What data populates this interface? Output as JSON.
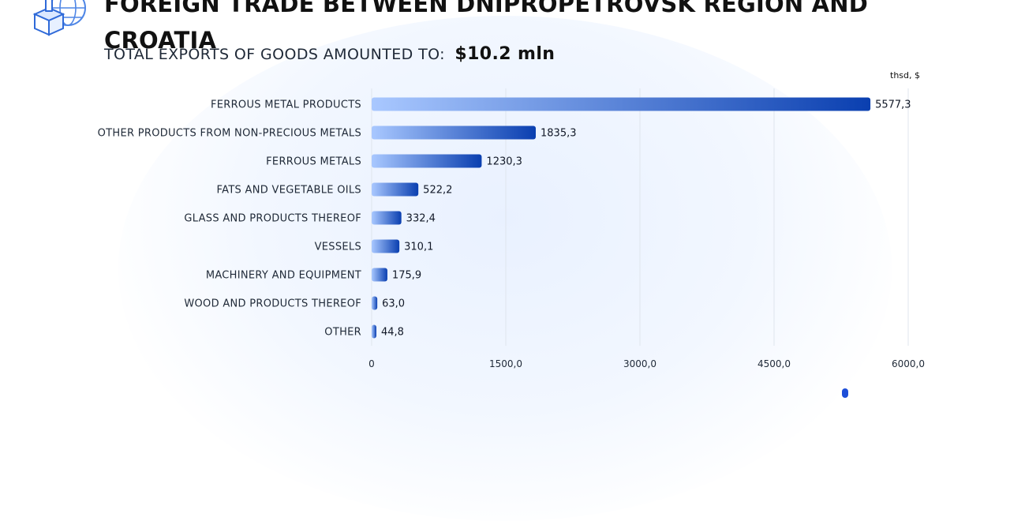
{
  "header": {
    "title": "FOREIGN TRADE BETWEEN DNIPROPETROVSK REGION AND CROATIA",
    "subtitle_prefix": "TOTAL EXPORTS OF GOODS AMOUNTED TO:",
    "subtitle_value": "$10.2 mln",
    "unit": "thsd, $"
  },
  "colors": {
    "bar_start": "#a9c8ff",
    "bar_end": "#0a3fb0",
    "grid": "#dfe5ee",
    "background_glow": "#eaf2ff"
  },
  "icons": {
    "logo": "globe-box-export-icon"
  },
  "chart_data": {
    "type": "bar",
    "orientation": "horizontal",
    "categories": [
      "FERROUS METAL PRODUCTS",
      "OTHER PRODUCTS FROM NON-PRECIOUS METALS",
      "FERROUS METALS",
      "FATS AND VEGETABLE OILS",
      "GLASS AND PRODUCTS THEREOF",
      "VESSELS",
      "MACHINERY AND EQUIPMENT",
      "WOOD AND PRODUCTS THEREOF",
      "OTHER"
    ],
    "values": [
      5577.3,
      1835.3,
      1230.3,
      522.2,
      332.4,
      310.1,
      175.9,
      63.0,
      44.8
    ],
    "value_labels": [
      "5577,3",
      "1835,3",
      "1230,3",
      "522,2",
      "332,4",
      "310,1",
      "175,9",
      "63,0",
      "44,8"
    ],
    "xlim": [
      0,
      6000
    ],
    "ticks": [
      0,
      1500,
      3000,
      4500,
      6000
    ],
    "tick_labels": [
      "0",
      "1500,0",
      "3000,0",
      "4500,0",
      "6000,0"
    ],
    "grid": true
  }
}
